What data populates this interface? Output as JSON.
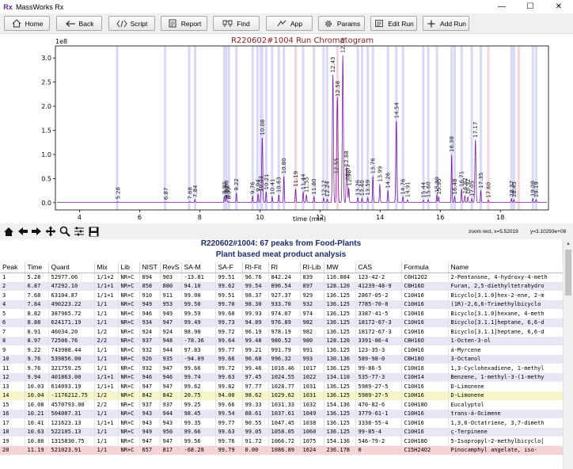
{
  "window": {
    "title": "MassWorks Rx",
    "icon_text": "Rx",
    "minimize": "—",
    "maximize": "☐",
    "close": "✕"
  },
  "toolbar": {
    "buttons": [
      {
        "label": "Home",
        "icon": "home-icon"
      },
      {
        "label": "Back",
        "icon": "back-arrow-icon"
      },
      {
        "label": "Script",
        "icon": "script-icon"
      },
      {
        "label": "Report",
        "icon": "report-icon"
      },
      {
        "label": "Find",
        "icon": "find-icon"
      },
      {
        "label": "App",
        "icon": "app-icon"
      },
      {
        "label": "Params",
        "icon": "gear-icon"
      },
      {
        "label": "Edit Run",
        "icon": "edit-run-icon"
      },
      {
        "label": "Add Run",
        "icon": "add-run-icon"
      }
    ]
  },
  "chart_data": {
    "type": "line",
    "title": "R220602#1004 Run Chromatogram",
    "xlabel": "time (min)",
    "ylabel": "",
    "y_scale_label": "1e8",
    "xlim": [
      3.2,
      19.6
    ],
    "ylim": [
      -0.15,
      3.25
    ],
    "xticks": [
      4,
      6,
      8,
      10,
      12,
      14,
      16,
      18
    ],
    "yticks": [
      0.0,
      0.5,
      1.0,
      1.5,
      2.0,
      2.5,
      3.0
    ],
    "ytick_labels": [
      "0.0",
      "0.5",
      "1.0",
      "1.5",
      "2.0",
      "2.5",
      "3.0"
    ],
    "grid": false,
    "line_color": "#7b1fa2",
    "band_color": "#d9d9f7",
    "band_color_red": "#f8d3d8",
    "bands": [
      5.25,
      6.85,
      7.65,
      7.85,
      8.82,
      8.88,
      8.97,
      9.22,
      9.76,
      9.92,
      10.03,
      10.08,
      10.21,
      10.41,
      10.63,
      10.8,
      11.19,
      11.44,
      11.8,
      12.12,
      12.24,
      13.26,
      13.4,
      13.59,
      13.76,
      14.26,
      14.54,
      14.76,
      15.44,
      15.6,
      15.89,
      16.38,
      16.48,
      16.71,
      17.05,
      17.35,
      18.37,
      18.45,
      19.08,
      19.19
    ],
    "red_bands": [
      11.19,
      12.58,
      17.6,
      18.61
    ],
    "peaks": [
      {
        "t": 5.28,
        "h": 0.02,
        "label": "5.28"
      },
      {
        "t": 6.87,
        "h": 0.01,
        "label": "6.87"
      },
      {
        "t": 7.68,
        "h": 0.02,
        "label": "7.68"
      },
      {
        "t": 7.84,
        "h": 0.06,
        "label": "7.84"
      },
      {
        "t": 8.82,
        "h": 0.13,
        "label": "8.82"
      },
      {
        "t": 8.88,
        "h": 0.16,
        "label": "8.88"
      },
      {
        "t": 8.91,
        "h": 0.05,
        "label": "8.91"
      },
      {
        "t": 8.97,
        "h": 0.02,
        "label": "8.97"
      },
      {
        "t": 9.22,
        "h": 0.2,
        "label": "9.22"
      },
      {
        "t": 9.76,
        "h": 0.13,
        "label": "9.76"
      },
      {
        "t": 9.94,
        "h": 0.18,
        "label": "9.94"
      },
      {
        "t": 10.03,
        "h": 0.18,
        "label": "10.03"
      },
      {
        "t": 10.08,
        "h": 1.35,
        "label": "10.08"
      },
      {
        "t": 10.21,
        "h": 0.22,
        "label": "10.21"
      },
      {
        "t": 10.41,
        "h": 0.12,
        "label": "10.41"
      },
      {
        "t": 10.63,
        "h": 0.16,
        "label": "10.63"
      },
      {
        "t": 10.8,
        "h": 0.55,
        "label": "10.80"
      },
      {
        "t": 11.19,
        "h": 0.28,
        "label": "11.19"
      },
      {
        "t": 11.44,
        "h": 0.22,
        "label": "11.44"
      },
      {
        "t": 11.55,
        "h": 0.16,
        "label": "11.55"
      },
      {
        "t": 11.8,
        "h": 0.12,
        "label": "11.80"
      },
      {
        "t": 12.12,
        "h": 0.09,
        "label": "12.12"
      },
      {
        "t": 12.24,
        "h": 0.07,
        "label": "12.24"
      },
      {
        "t": 12.43,
        "h": 2.65,
        "label": "12.43"
      },
      {
        "t": 12.55,
        "h": 0.55,
        "label": "12.55"
      },
      {
        "t": 12.58,
        "h": 2.15,
        "label": "12.58"
      },
      {
        "t": 12.76,
        "h": 3.05,
        "label": "12.76"
      },
      {
        "t": 12.88,
        "h": 0.7,
        "label": "12.88"
      },
      {
        "t": 12.91,
        "h": 0.42,
        "label": "12.91"
      },
      {
        "t": 12.96,
        "h": 0.3,
        "label": "12.96"
      },
      {
        "t": 13.26,
        "h": 0.1,
        "label": "13.26"
      },
      {
        "t": 13.4,
        "h": 0.09,
        "label": "13.40"
      },
      {
        "t": 13.59,
        "h": 0.1,
        "label": "13.59"
      },
      {
        "t": 13.76,
        "h": 0.55,
        "label": "13.76"
      },
      {
        "t": 13.99,
        "h": 0.38,
        "label": "13.99"
      },
      {
        "t": 14.26,
        "h": 0.25,
        "label": "14.26"
      },
      {
        "t": 14.54,
        "h": 1.7,
        "label": "14.54"
      },
      {
        "t": 14.76,
        "h": 0.12,
        "label": "14.76"
      },
      {
        "t": 14.91,
        "h": 0.06,
        "label": "14.91"
      },
      {
        "t": 15.44,
        "h": 0.05,
        "label": "15.44"
      },
      {
        "t": 15.6,
        "h": 0.06,
        "label": "15.60"
      },
      {
        "t": 15.89,
        "h": 0.16,
        "label": "15.89"
      },
      {
        "t": 15.95,
        "h": 0.12,
        "label": "15.95"
      },
      {
        "t": 16.38,
        "h": 1.0,
        "label": "16.38"
      },
      {
        "t": 16.48,
        "h": 0.12,
        "label": "16.48"
      },
      {
        "t": 16.71,
        "h": 0.28,
        "label": "16.71"
      },
      {
        "t": 16.82,
        "h": 0.14,
        "label": "16.82"
      },
      {
        "t": 16.92,
        "h": 0.12,
        "label": "16.92"
      },
      {
        "t": 17.05,
        "h": 0.08,
        "label": "17.05"
      },
      {
        "t": 17.17,
        "h": 1.3,
        "label": "17.17"
      },
      {
        "t": 17.35,
        "h": 0.25,
        "label": "17.35"
      },
      {
        "t": 17.6,
        "h": 0.05,
        "label": "17.60"
      },
      {
        "t": 18.37,
        "h": 0.08,
        "label": "18.37"
      },
      {
        "t": 18.45,
        "h": 0.06,
        "label": "18.45"
      },
      {
        "t": 19.08,
        "h": 0.08,
        "label": "19.08"
      },
      {
        "t": 19.19,
        "h": 0.06,
        "label": "19.19"
      }
    ]
  },
  "nav_toolbar": {
    "zoom_status": "zoom rect, x=5.52019",
    "y_status": "y=3.10293e+08",
    "icons": [
      "home-icon",
      "back-arrow-icon",
      "forward-arrow-icon",
      "pan-icon",
      "zoom-icon",
      "configure-subplots-icon",
      "save-icon"
    ]
  },
  "results": {
    "heading": "R220602#1004: 67 peaks from Food-Plants",
    "subheading": "Plant based meat product analysis",
    "columns": [
      "Peak",
      "Time",
      "Quant",
      "Mix",
      "Lib",
      "NIST",
      "RevS",
      "SA-M",
      "SA-F",
      "RI-Fit",
      "RI",
      "RI-Lib",
      "MW",
      "CAS",
      "Formula",
      "Name"
    ],
    "rows": [
      [
        "1",
        "5.28",
        "52977.06",
        "1/1+2",
        "NR+C",
        "894",
        "903",
        "-13.81",
        "99.51",
        "96.76",
        "842.24",
        "839",
        "116.084",
        "123-42-2",
        "C6H12O2",
        "2-Pentanone, 4-hydroxy-4-meth"
      ],
      [
        "2",
        "6.87",
        "47292.10",
        "1/1+1",
        "NR+C",
        "858",
        "880",
        "94.10",
        "99.62",
        "99.54",
        "896.54",
        "897",
        "128.120",
        "41239-48-9",
        "C8H16O",
        "Furan, 2,5-diethyltetrahydro"
      ],
      [
        "3",
        "7.68",
        "63104.87",
        "1/1+1",
        "NR+C",
        "910",
        "911",
        "99.00",
        "99.51",
        "98.37",
        "927.37",
        "929",
        "136.125",
        "2867-05-2",
        "C10H16",
        "Bicyclo[3.1.0]hex-2-ene, 2-m"
      ],
      [
        "4",
        "7.84",
        "490223.22",
        "1/1",
        "NR+C",
        "949",
        "953",
        "99.50",
        "99.70",
        "98.30",
        "933.70",
        "932",
        "136.125",
        "7785-70-8",
        "C10H16",
        "(1R)-2,6,6-Trimethylbicyclo"
      ],
      [
        "5",
        "8.82",
        "387965.72",
        "1/1",
        "NR+C",
        "946",
        "949",
        "99.59",
        "99.60",
        "99.93",
        "974.07",
        "974",
        "136.125",
        "3387-41-5",
        "C10H16",
        "Bicyclo[3.1.0]hexane, 4-meth"
      ],
      [
        "6",
        "8.88",
        "624171.19",
        "1/1",
        "NR+C",
        "934",
        "947",
        "99.49",
        "99.73",
        "94.89",
        "976.89",
        "982",
        "136.125",
        "18172-67-3",
        "C10H16",
        "Bicyclo[3.1.1]heptane, 6,6-d"
      ],
      [
        "7",
        "8.91",
        "46034.20",
        "1/2",
        "NR+C",
        "924",
        "924",
        "98.90",
        "99.72",
        "96.19",
        "978.19",
        "982",
        "136.125",
        "18172-67-3",
        "C10H16",
        "Bicyclo[3.1.1]heptane, 6,6-d"
      ],
      [
        "8",
        "8.97",
        "72506.76",
        "2/2",
        "NR+C",
        "937",
        "948",
        "-78.36",
        "99.64",
        "99.48",
        "980.52",
        "980",
        "128.120",
        "3391-86-4",
        "C8H16O",
        "1-Octen-3-ol"
      ],
      [
        "9",
        "9.22",
        "743908.44",
        "1/1",
        "NR+C",
        "932",
        "944",
        "97.83",
        "99.77",
        "99.21",
        "991.79",
        "991",
        "136.125",
        "123-35-3",
        "C10H16",
        "á-Myrcene"
      ],
      [
        "10",
        "9.76",
        "539856.00",
        "1/1",
        "NR+C",
        "926",
        "935",
        "-94.09",
        "99.66",
        "96.68",
        "996.32",
        "993",
        "130.136",
        "589-98-0",
        "C8H18O",
        "3-Octanol"
      ],
      [
        "11",
        "9.76",
        "321759.25",
        "1/1",
        "NR+C",
        "932",
        "947",
        "99.66",
        "99.72",
        "99.46",
        "1016.46",
        "1017",
        "136.125",
        "99-86-5",
        "C10H16",
        "1,3-Cyclohexadiene, 1-methyl"
      ],
      [
        "12",
        "9.94",
        "401863.00",
        "1/1+1",
        "NR+C",
        "946",
        "946",
        "99.74",
        "99.63",
        "97.45",
        "1024.55",
        "1022",
        "134.110",
        "535-77-3",
        "C10H14",
        "Benzene, 1-methyl-3-(1-methy"
      ],
      [
        "13",
        "10.03",
        "614093.19",
        "1/1+1",
        "NR+C",
        "947",
        "947",
        "99.62",
        "99.82",
        "97.77",
        "1028.77",
        "1031",
        "136.125",
        "5989-27-5",
        "C10H16",
        "D-Limonene"
      ],
      [
        "14",
        "10.04",
        "-1176212.75",
        "1/2",
        "NR+C",
        "842",
        "842",
        "20.75",
        "94.00",
        "98.62",
        "1029.62",
        "1031",
        "136.125",
        "5989-27-5",
        "C10H16",
        "D-Limonene"
      ],
      [
        "15",
        "10.08",
        "4570793.00",
        "2/2",
        "NR+C",
        "937",
        "937",
        "99.25",
        "99.66",
        "99.33",
        "1031.33",
        "1032",
        "154.136",
        "470-82-6",
        "C10H18O",
        "Eucalyptol"
      ],
      [
        "16",
        "10.21",
        "504007.31",
        "1/1",
        "NR+C",
        "943",
        "944",
        "98.45",
        "99.54",
        "88.61",
        "1037.61",
        "1049",
        "136.125",
        "3779-61-1",
        "C10H16",
        "trans-á-Ocimene"
      ],
      [
        "17",
        "10.41",
        "121623.13",
        "1/1+1",
        "NR+C",
        "943",
        "943",
        "99.35",
        "99.77",
        "90.55",
        "1047.45",
        "1038",
        "136.125",
        "3338-55-4",
        "C10H16",
        "1,3,6-Octatriene, 3,7-dimeth"
      ],
      [
        "18",
        "10.63",
        "522105.13",
        "1/1",
        "NR+C",
        "949",
        "950",
        "99.66",
        "99.63",
        "99.05",
        "1058.05",
        "1060",
        "136.125",
        "99-85-4",
        "C10H16",
        "ç-Terpinene"
      ],
      [
        "19",
        "10.80",
        "1315830.75",
        "1/1",
        "NR+C",
        "947",
        "947",
        "99.56",
        "99.76",
        "91.72",
        "1066.72",
        "1075",
        "154.136",
        "546-79-2",
        "C10H18O",
        "5-Isopropyl-2-methylbicyclo["
      ],
      [
        "20",
        "11.19",
        "521023.91",
        "1/1",
        "NR+C",
        "657",
        "817",
        "-68.28",
        "99.79",
        "0.00",
        "1086.89",
        "1624",
        "236.178",
        "0",
        "C15H24O2",
        "Pinocamphyl angelate, iso-"
      ]
    ]
  }
}
